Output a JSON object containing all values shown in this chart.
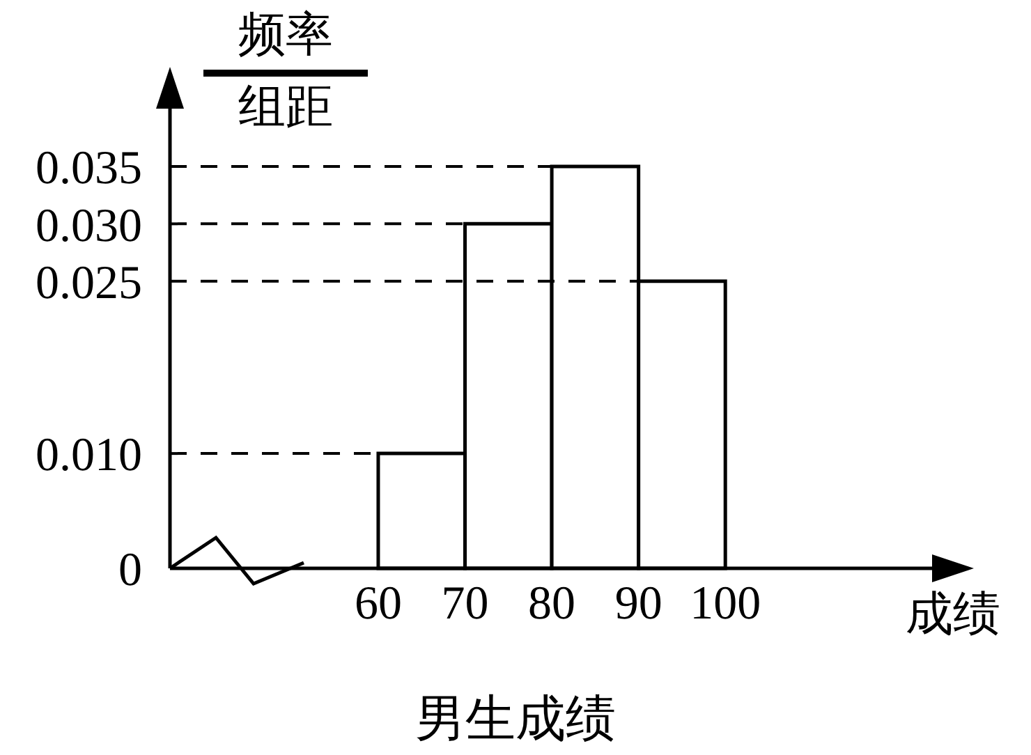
{
  "chart_data": {
    "type": "histogram",
    "title": "男生成绩",
    "xlabel": "成绩",
    "ylabel": "频率组距",
    "bins": [
      60,
      70,
      80,
      90,
      100
    ],
    "values": [
      0.01,
      0.03,
      0.035,
      0.025
    ],
    "color": "#000000",
    "xlim": [
      36,
      128
    ],
    "xticks": [
      60,
      70,
      80,
      90,
      100
    ],
    "ylim": [
      0,
      0.041
    ],
    "yticks": [
      0,
      {
        "value": 0.01,
        "label": "0.010"
      },
      {
        "value": 0.025,
        "label": "0.025"
      },
      {
        "value": 0.03,
        "label": "0.030"
      },
      {
        "value": 0.035,
        "label": "0.035"
      }
    ],
    "ref_lines": [
      {
        "axis": "y",
        "value": 0.035,
        "line_style": "dashed",
        "color": "#000000"
      },
      {
        "axis": "y",
        "value": 0.03,
        "line_style": "dashed",
        "color": "#000000"
      },
      {
        "axis": "y",
        "value": 0.025,
        "line_style": "dashed",
        "color": "#000000"
      },
      {
        "axis": "y",
        "value": 0.01,
        "line_style": "dashed",
        "color": "#000000"
      }
    ]
  }
}
